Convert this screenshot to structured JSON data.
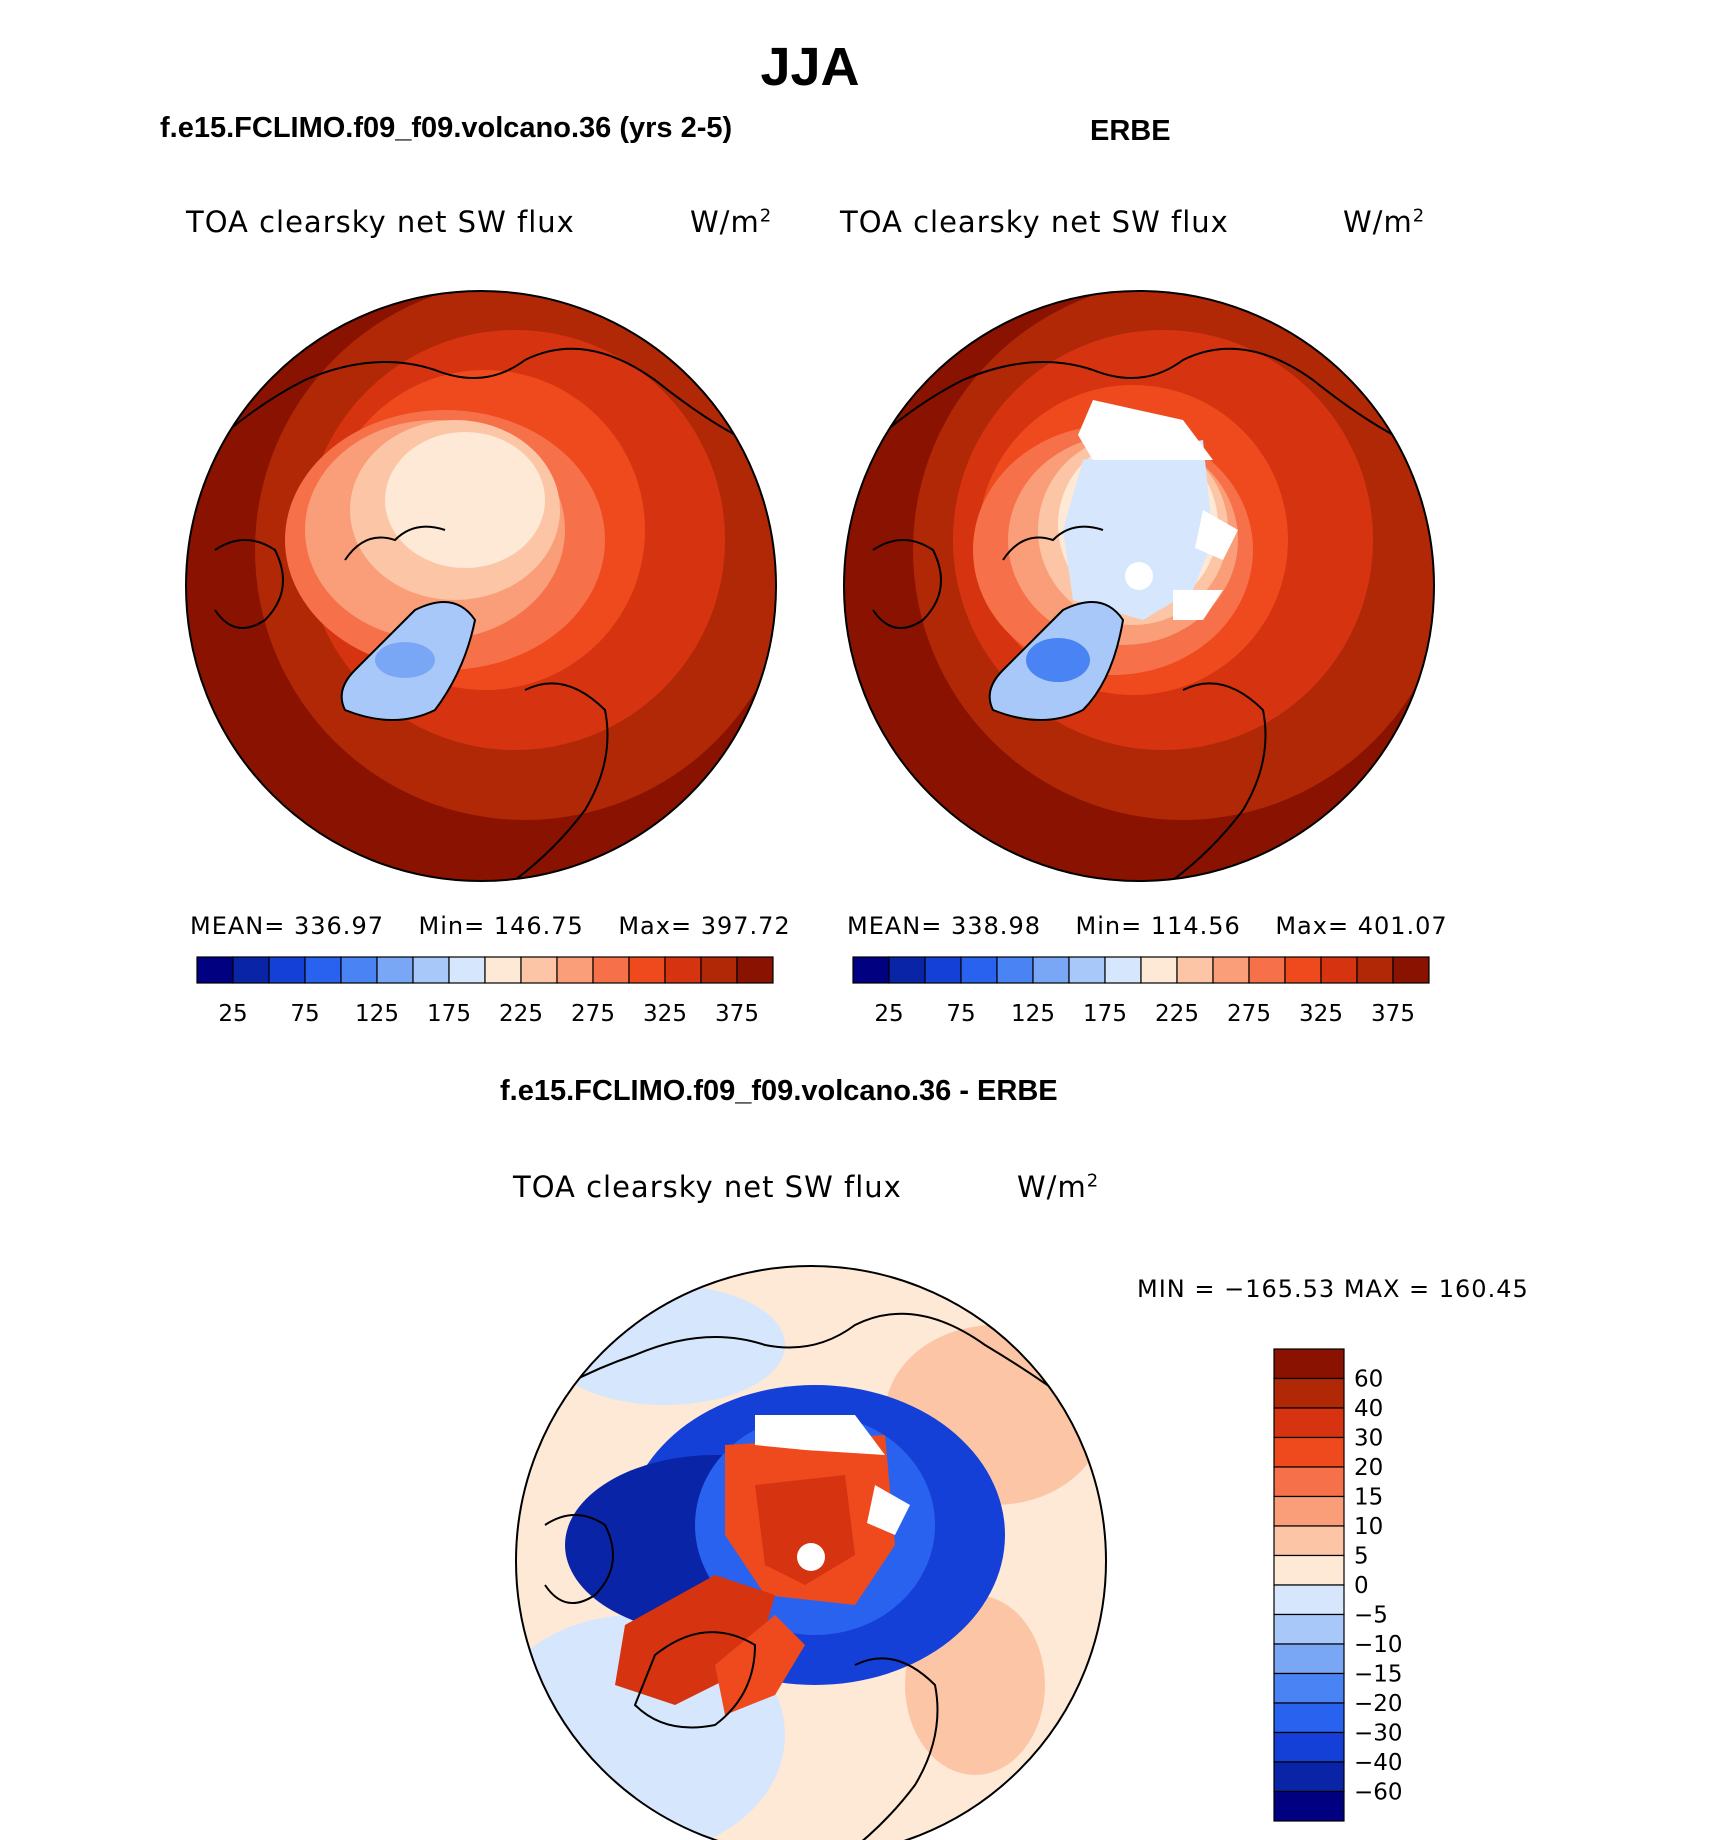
{
  "title": "JJA",
  "panels": {
    "left": {
      "heading": "f.e15.FCLIMO.f09_f09.volcano.36 (yrs 2-5)",
      "variable": "TOA clearsky net SW flux",
      "units_base": "W/m",
      "units_exp": "2",
      "stats": {
        "mean_label": "MEAN=",
        "mean": "336.97",
        "min_label": "Min=",
        "min": "146.75",
        "max_label": "Max=",
        "max": "397.72"
      }
    },
    "right": {
      "heading": "ERBE",
      "variable": "TOA clearsky net SW flux",
      "units_base": "W/m",
      "units_exp": "2",
      "stats": {
        "mean_label": "MEAN=",
        "mean": "338.98",
        "min_label": "Min=",
        "min": "114.56",
        "max_label": "Max=",
        "max": "401.07"
      }
    },
    "diff": {
      "heading": "f.e15.FCLIMO.f09_f09.volcano.36 - ERBE",
      "variable": "TOA clearsky net SW flux",
      "units_base": "W/m",
      "units_exp": "2",
      "minmax": "MIN = −165.53 MAX = 160.45"
    }
  },
  "chart_data": [
    {
      "type": "heatmap",
      "projection": "north-polar-stereographic",
      "panel": "left",
      "legend_placement": "bottom",
      "colorbar_levels": [
        "25",
        "75",
        "125",
        "175",
        "225",
        "275",
        "325",
        "375"
      ],
      "colorbar_colors": [
        "#000080",
        "#0a24a8",
        "#1440d8",
        "#2a62f0",
        "#4a84f4",
        "#7aa6f6",
        "#a8c8fa",
        "#d6e6fc",
        "#fde9d6",
        "#fcc6a6",
        "#f99e78",
        "#f6704a",
        "#ee4a1e",
        "#d63410",
        "#b02806",
        "#8a1200"
      ],
      "summary": {
        "mean": 336.97,
        "min": 146.75,
        "max": 397.72
      }
    },
    {
      "type": "heatmap",
      "projection": "north-polar-stereographic",
      "panel": "right",
      "legend_placement": "bottom",
      "colorbar_levels": [
        "25",
        "75",
        "125",
        "175",
        "225",
        "275",
        "325",
        "375"
      ],
      "colorbar_colors": [
        "#000080",
        "#0a24a8",
        "#1440d8",
        "#2a62f0",
        "#4a84f4",
        "#7aa6f6",
        "#a8c8fa",
        "#d6e6fc",
        "#fde9d6",
        "#fcc6a6",
        "#f99e78",
        "#f6704a",
        "#ee4a1e",
        "#d63410",
        "#b02806",
        "#8a1200"
      ],
      "summary": {
        "mean": 338.98,
        "min": 114.56,
        "max": 401.07
      }
    },
    {
      "type": "heatmap",
      "projection": "north-polar-stereographic",
      "panel": "diff",
      "legend_placement": "right",
      "colorbar_levels": [
        "60",
        "40",
        "30",
        "20",
        "15",
        "10",
        "5",
        "0",
        "−5",
        "−10",
        "−15",
        "−20",
        "−30",
        "−40",
        "−60"
      ],
      "colorbar_colors": [
        "#8a1200",
        "#b02806",
        "#d63410",
        "#ee4a1e",
        "#f6704a",
        "#f99e78",
        "#fcc6a6",
        "#fde9d6",
        "#d6e6fc",
        "#a8c8fa",
        "#7aa6f6",
        "#4a84f4",
        "#2a62f0",
        "#1440d8",
        "#0a24a8",
        "#000080"
      ],
      "summary": {
        "min": -165.53,
        "max": 160.45
      }
    }
  ]
}
